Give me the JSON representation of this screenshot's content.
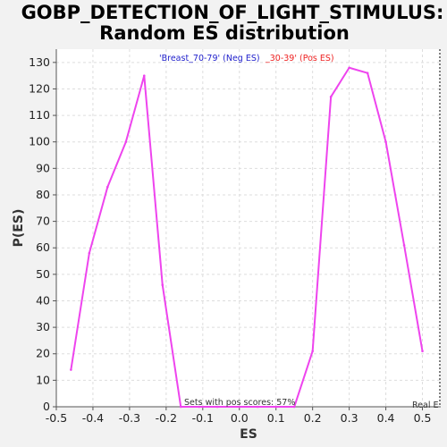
{
  "chart_data": {
    "type": "line",
    "title_line1": "GOBP_DETECTION_OF_LIGHT_STIMULUS:",
    "title_line2": "Random ES distribution",
    "xlabel": "ES",
    "ylabel": "P(ES)",
    "xlim": [
      -0.5,
      0.55
    ],
    "ylim": [
      0,
      135
    ],
    "xticks": [
      -0.5,
      -0.4,
      -0.3,
      -0.2,
      -0.1,
      0.0,
      0.1,
      0.2,
      0.3,
      0.4,
      0.5
    ],
    "xtick_labels": [
      "-0.5",
      "-0.4",
      "-0.3",
      "-0.2",
      "-0.1",
      "0.0",
      "0.1",
      "0.2",
      "0.3",
      "0.4",
      "0.5"
    ],
    "yticks": [
      0,
      10,
      20,
      30,
      40,
      50,
      60,
      70,
      80,
      90,
      100,
      110,
      120,
      130
    ],
    "grid": true,
    "series": [
      {
        "color": "#ee44ee",
        "x": [
          -0.46,
          -0.41,
          -0.36,
          -0.31,
          -0.26,
          -0.21,
          -0.16,
          -0.11,
          -0.06,
          0.0,
          0.05,
          0.1,
          0.15,
          0.2,
          0.25,
          0.3,
          0.35,
          0.4,
          0.45,
          0.5
        ],
        "y": [
          14,
          58,
          83,
          100,
          125,
          46,
          0,
          0,
          0,
          0,
          0,
          0,
          0,
          21,
          117,
          128,
          126,
          100,
          61,
          21
        ]
      }
    ],
    "legend": {
      "neg_text": "'Breast_70-79' (Neg ES)",
      "neg_color": "#2222cc",
      "pos_text": "_30-39' (Pos ES)",
      "pos_color": "#ee2222"
    },
    "annotation": "Sets with pos scores: 57%",
    "real_label": "Real E",
    "real_es_x": 0.55
  }
}
